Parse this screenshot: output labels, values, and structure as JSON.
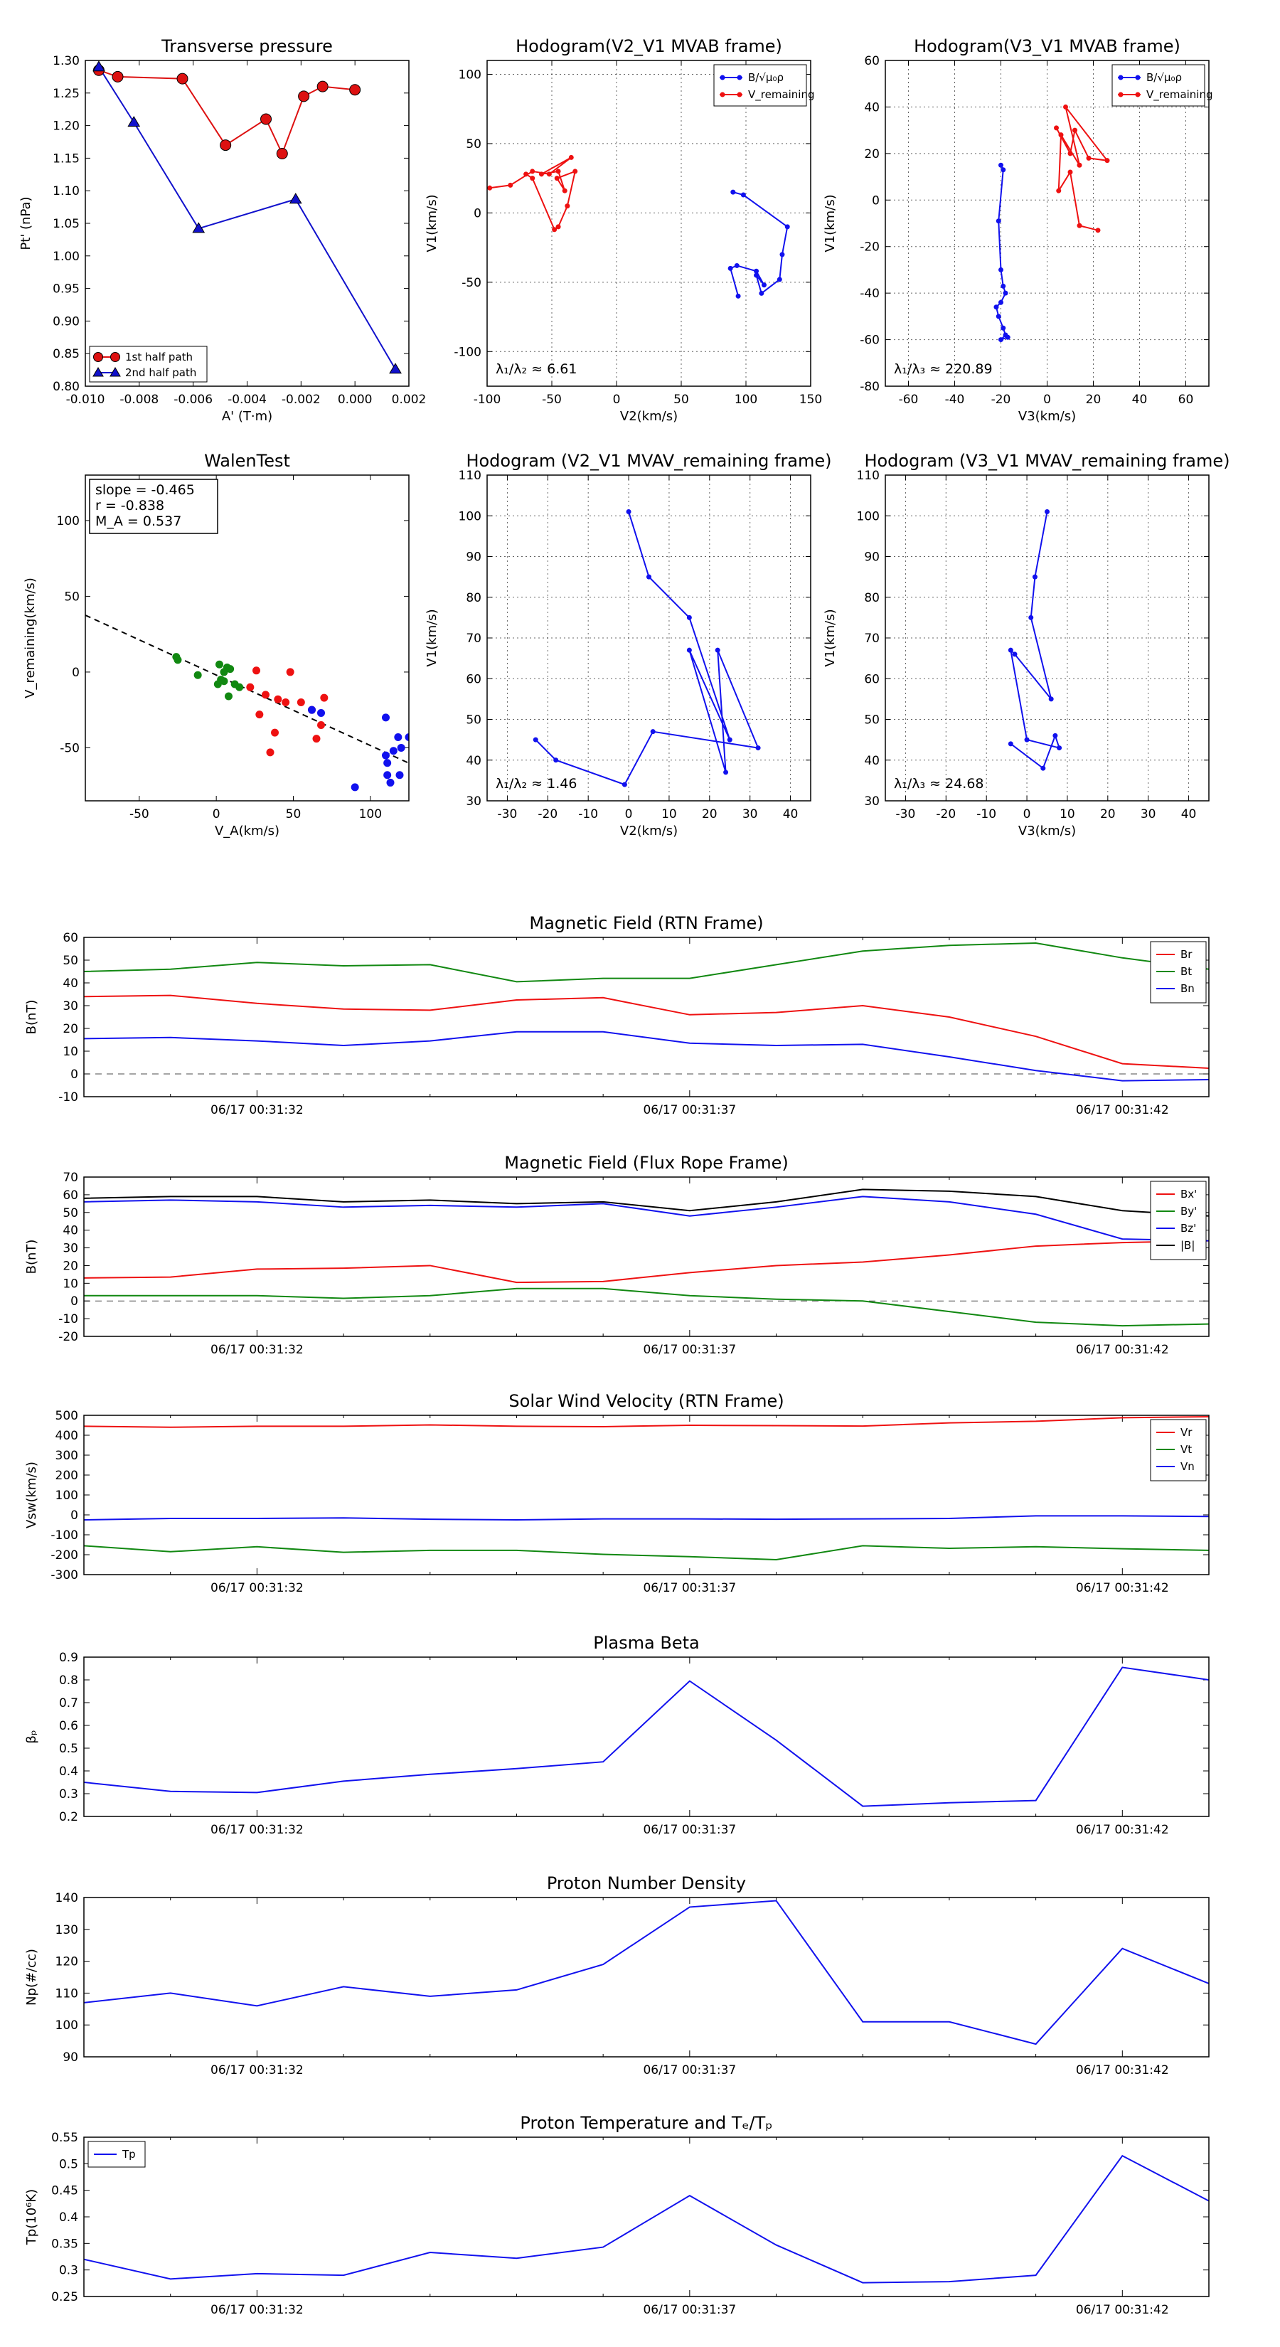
{
  "chart_data": [
    {
      "id": "pt",
      "type": "scatter",
      "title": "Transverse pressure",
      "xlabel": "A' (T·m)",
      "ylabel": "Pt' (nPa)",
      "xlim": [
        -0.01,
        0.002
      ],
      "ylim": [
        0.8,
        1.3
      ],
      "xticks": [
        -0.01,
        -0.008,
        -0.006,
        -0.004,
        -0.002,
        0.0,
        0.002
      ],
      "xtick_labels": [
        "-0.010",
        "-0.008",
        "-0.006",
        "-0.004",
        "-0.002",
        "0.000",
        "0.002"
      ],
      "yticks": [
        0.8,
        0.85,
        0.9,
        0.95,
        1.0,
        1.05,
        1.1,
        1.15,
        1.2,
        1.25,
        1.3
      ],
      "ytick_labels": [
        "0.80",
        "0.85",
        "0.90",
        "0.95",
        "1.00",
        "1.05",
        "1.10",
        "1.15",
        "1.20",
        "1.25",
        "1.30"
      ],
      "grid": false,
      "legend": "lower-left",
      "series": [
        {
          "name": "1st half path",
          "color": "#dd1111",
          "marker": "circle",
          "x": [
            -0.0095,
            -0.0088,
            -0.0064,
            -0.0048,
            -0.0033,
            -0.0027,
            -0.0019,
            -0.0012,
            0.0
          ],
          "y": [
            1.285,
            1.275,
            1.272,
            1.17,
            1.21,
            1.157,
            1.245,
            1.26,
            1.255
          ]
        },
        {
          "name": "2nd half path",
          "color": "#1111cc",
          "marker": "triangle",
          "x": [
            -0.0095,
            -0.0082,
            -0.0058,
            -0.0022,
            0.0015
          ],
          "y": [
            1.29,
            1.205,
            1.042,
            1.087,
            0.826
          ]
        }
      ]
    },
    {
      "id": "hodo1",
      "type": "line",
      "title": "Hodogram(V2_V1 MVAB frame)",
      "xlabel": "V2(km/s)",
      "ylabel": "V1(km/s)",
      "xlim": [
        -100,
        150
      ],
      "ylim": [
        -125,
        110
      ],
      "xticks": [
        -100,
        -50,
        0,
        50,
        100,
        150
      ],
      "yticks": [
        -100,
        -50,
        0,
        50,
        100
      ],
      "grid": true,
      "legend": "top-right",
      "annotation": "λ₁/λ₂ ≈ 6.61",
      "series": [
        {
          "name": "B/√μ₀ρ",
          "color": "#1111ee",
          "x": [
            90,
            98,
            132,
            128,
            126,
            112,
            108,
            114,
            108,
            93,
            88,
            94
          ],
          "y": [
            15,
            13,
            -10,
            -30,
            -48,
            -58,
            -45,
            -52,
            -42,
            -38,
            -40,
            -60
          ]
        },
        {
          "name": "V_remaining",
          "color": "#ee1111",
          "x": [
            -98,
            -82,
            -65,
            -52,
            -35,
            -58,
            -45,
            -40,
            -46,
            -32,
            -38,
            -45,
            -48,
            -65,
            -70
          ],
          "y": [
            18,
            20,
            30,
            28,
            40,
            28,
            30,
            16,
            25,
            30,
            5,
            -10,
            -12,
            25,
            28
          ]
        }
      ]
    },
    {
      "id": "hodo2",
      "type": "line",
      "title": "Hodogram(V3_V1 MVAB frame)",
      "xlabel": "V3(km/s)",
      "ylabel": "V1(km/s)",
      "xlim": [
        -70,
        70
      ],
      "ylim": [
        -80,
        60
      ],
      "xticks": [
        -60,
        -40,
        -20,
        0,
        20,
        40,
        60
      ],
      "yticks": [
        -80,
        -60,
        -40,
        -20,
        0,
        20,
        40,
        60
      ],
      "grid": true,
      "legend": "top-right",
      "annotation": "λ₁/λ₃ ≈ 220.89",
      "series": [
        {
          "name": "B/√μ₀ρ",
          "color": "#1111ee",
          "x": [
            -20,
            -19,
            -21,
            -20,
            -19,
            -18,
            -20,
            -22,
            -21,
            -19,
            -18,
            -20,
            -17
          ],
          "y": [
            15,
            13,
            -9,
            -30,
            -37,
            -40,
            -44,
            -46,
            -50,
            -55,
            -58,
            -60,
            -59
          ]
        },
        {
          "name": "V_remaining",
          "color": "#ee1111",
          "x": [
            4,
            10,
            12,
            18,
            26,
            8,
            14,
            6,
            5,
            10,
            14,
            22
          ],
          "y": [
            31,
            20,
            30,
            18,
            17,
            40,
            15,
            28,
            4,
            12,
            -11,
            -13
          ]
        }
      ]
    },
    {
      "id": "walen",
      "type": "scatter",
      "title": "WalenTest",
      "xlabel": "V_A(km/s)",
      "ylabel": "V_remaining(km/s)",
      "xlim": [
        -85,
        125
      ],
      "ylim": [
        -85,
        130
      ],
      "xticks": [
        -50,
        0,
        50,
        100
      ],
      "yticks": [
        -50,
        0,
        50,
        100
      ],
      "grid": false,
      "annotation_lines": [
        "slope = -0.465",
        "r = -0.838",
        "M_A = 0.537"
      ],
      "fit": {
        "slope": -0.465,
        "intercept": -2,
        "color": "#000000"
      },
      "series": [
        {
          "name": "green",
          "color": "#118811",
          "x": [
            -26,
            -25,
            -12,
            2,
            5,
            7,
            1,
            3,
            8,
            12,
            15,
            5,
            9
          ],
          "y": [
            10,
            8,
            -2,
            5,
            -6,
            3,
            -8,
            -5,
            -16,
            -8,
            -10,
            0,
            2
          ]
        },
        {
          "name": "red",
          "color": "#ee1111",
          "x": [
            22,
            26,
            28,
            32,
            35,
            38,
            40,
            45,
            48,
            55,
            62,
            65,
            68,
            70
          ],
          "y": [
            -10,
            1,
            -28,
            -15,
            -53,
            -40,
            -18,
            -20,
            0,
            -20,
            -25,
            -44,
            -35,
            -17
          ]
        },
        {
          "name": "blue",
          "color": "#1111ee",
          "x": [
            62,
            68,
            90,
            95,
            110,
            110,
            111,
            111,
            113,
            115,
            118,
            119,
            120,
            125
          ],
          "y": [
            -25,
            -27,
            -76,
            -88,
            -30,
            -55,
            -60,
            -68,
            -73,
            -52,
            -43,
            -68,
            -50,
            -43
          ]
        }
      ]
    },
    {
      "id": "hodo3",
      "type": "line",
      "title": "Hodogram (V2_V1 MVAV_remaining frame)",
      "xlabel": "V2(km/s)",
      "ylabel": "V1(km/s)",
      "xlim": [
        -35,
        45
      ],
      "ylim": [
        30,
        110
      ],
      "xticks": [
        -30,
        -20,
        -10,
        0,
        10,
        20,
        30,
        40
      ],
      "yticks": [
        30,
        40,
        50,
        60,
        70,
        80,
        90,
        100,
        110
      ],
      "grid": true,
      "annotation": "λ₁/λ₂ ≈ 1.46",
      "series": [
        {
          "name": "V",
          "color": "#1111ee",
          "x": [
            0,
            5,
            15,
            25,
            15,
            24,
            22,
            32,
            6,
            -1,
            -18,
            -23
          ],
          "y": [
            101,
            85,
            75,
            45,
            67,
            37,
            67,
            43,
            47,
            34,
            40,
            45
          ]
        }
      ]
    },
    {
      "id": "hodo4",
      "type": "line",
      "title": "Hodogram (V3_V1 MVAV_remaining frame)",
      "xlabel": "V3(km/s)",
      "ylabel": "V1(km/s)",
      "xlim": [
        -35,
        45
      ],
      "ylim": [
        30,
        110
      ],
      "xticks": [
        -30,
        -20,
        -10,
        0,
        10,
        20,
        30,
        40
      ],
      "yticks": [
        30,
        40,
        50,
        60,
        70,
        80,
        90,
        100,
        110
      ],
      "grid": true,
      "annotation": "λ₁/λ₃ ≈ 24.68",
      "series": [
        {
          "name": "V",
          "color": "#1111ee",
          "x": [
            5,
            2,
            1,
            6,
            -3,
            -4,
            0,
            8,
            7,
            4,
            -4
          ],
          "y": [
            101,
            85,
            75,
            55,
            66,
            67,
            45,
            43,
            46,
            38,
            44
          ]
        }
      ]
    },
    {
      "id": "bfield",
      "type": "line",
      "title": "Magnetic Field (RTN Frame)",
      "xlabel": "",
      "ylabel": "B(nT)",
      "ylim": [
        -10,
        60
      ],
      "yticks": [
        -10,
        0,
        10,
        20,
        30,
        40,
        50,
        60
      ],
      "xtick_labels": [
        "06/17 00:31:32",
        "06/17 00:31:37",
        "06/17 00:31:42"
      ],
      "zero_line": true,
      "legend": "top-right",
      "series": [
        {
          "name": "Br",
          "color": "#ee1111",
          "values": [
            34,
            34.5,
            31,
            28.5,
            28,
            32.5,
            33.5,
            26,
            27,
            30,
            25,
            16.5,
            4.5,
            2.5
          ]
        },
        {
          "name": "Bt",
          "color": "#118811",
          "values": [
            45,
            46,
            49,
            47.5,
            48,
            40.5,
            42,
            42,
            48,
            54,
            56.5,
            57.5,
            51,
            46
          ]
        },
        {
          "name": "Bn",
          "color": "#1111ee",
          "values": [
            15.5,
            16,
            14.5,
            12.5,
            14.5,
            18.5,
            18.5,
            13.5,
            12.5,
            13,
            7.5,
            1.5,
            -3,
            -2.5
          ]
        }
      ]
    },
    {
      "id": "bfr",
      "type": "line",
      "title": "Magnetic Field (Flux Rope Frame)",
      "xlabel": "",
      "ylabel": "B(nT)",
      "ylim": [
        -20,
        70
      ],
      "yticks": [
        -20,
        -10,
        0,
        10,
        20,
        30,
        40,
        50,
        60,
        70
      ],
      "xtick_labels": [
        "06/17 00:31:32",
        "06/17 00:31:37",
        "06/17 00:31:42"
      ],
      "zero_line": true,
      "legend": "top-right",
      "series": [
        {
          "name": "Bx'",
          "color": "#ee1111",
          "values": [
            13,
            13.5,
            18,
            18.5,
            20,
            10.5,
            11,
            16,
            20,
            22,
            26,
            31,
            33,
            34
          ]
        },
        {
          "name": "By'",
          "color": "#118811",
          "values": [
            3,
            3,
            3,
            1.5,
            3,
            7,
            7,
            3,
            1,
            0,
            -6,
            -12,
            -14,
            -13
          ]
        },
        {
          "name": "Bz'",
          "color": "#1111ee",
          "values": [
            56,
            57,
            56,
            53,
            54,
            53,
            55,
            48,
            53,
            59,
            56,
            49,
            35,
            34
          ]
        },
        {
          "name": "|B|",
          "color": "#000000",
          "values": [
            58,
            59,
            59,
            56,
            57,
            55,
            56,
            51,
            56,
            63,
            62,
            59,
            51,
            48
          ]
        }
      ]
    },
    {
      "id": "vsw",
      "type": "line",
      "title": "Solar Wind Velocity (RTN Frame)",
      "xlabel": "",
      "ylabel": "Vsw(km/s)",
      "ylim": [
        -300,
        500
      ],
      "yticks": [
        -300,
        -200,
        -100,
        0,
        100,
        200,
        300,
        400,
        500
      ],
      "xtick_labels": [
        "06/17 00:31:32",
        "06/17 00:31:37",
        "06/17 00:31:42"
      ],
      "legend": "top-right",
      "series": [
        {
          "name": "Vr",
          "color": "#ee1111",
          "values": [
            445,
            440,
            445,
            445,
            452,
            445,
            443,
            450,
            448,
            446,
            462,
            470,
            488,
            493
          ]
        },
        {
          "name": "Vt",
          "color": "#118811",
          "values": [
            -155,
            -185,
            -160,
            -188,
            -178,
            -178,
            -198,
            -210,
            -225,
            -155,
            -168,
            -160,
            -170,
            -178
          ]
        },
        {
          "name": "Vn",
          "color": "#1111ee",
          "values": [
            -25,
            -18,
            -18,
            -15,
            -22,
            -25,
            -20,
            -20,
            -22,
            -20,
            -18,
            -5,
            -5,
            -8
          ]
        }
      ]
    },
    {
      "id": "beta",
      "type": "line",
      "title": "Plasma Beta",
      "xlabel": "",
      "ylabel": "βₚ",
      "ylim": [
        0.2,
        0.9
      ],
      "yticks": [
        0.2,
        0.3,
        0.4,
        0.5,
        0.6,
        0.7,
        0.8,
        0.9
      ],
      "xtick_labels": [
        "06/17 00:31:32",
        "06/17 00:31:37",
        "06/17 00:31:42"
      ],
      "series": [
        {
          "name": "beta",
          "color": "#1111ee",
          "values": [
            0.35,
            0.31,
            0.305,
            0.355,
            0.385,
            0.41,
            0.44,
            0.795,
            0.535,
            0.245,
            0.26,
            0.27,
            0.855,
            0.8
          ]
        }
      ]
    },
    {
      "id": "np",
      "type": "line",
      "title": "Proton Number Density",
      "xlabel": "",
      "ylabel": "Np(#/cc)",
      "ylim": [
        90,
        140
      ],
      "yticks": [
        90,
        100,
        110,
        120,
        130,
        140
      ],
      "xtick_labels": [
        "06/17 00:31:32",
        "06/17 00:31:37",
        "06/17 00:31:42"
      ],
      "series": [
        {
          "name": "Np",
          "color": "#1111ee",
          "values": [
            107,
            110,
            106,
            112,
            109,
            111,
            119,
            137,
            139,
            101,
            101,
            94,
            124,
            113
          ]
        }
      ]
    },
    {
      "id": "tp",
      "type": "line",
      "title": "Proton Temperature and Tₑ/Tₚ",
      "xlabel": "",
      "ylabel": "Tp(10⁶K)",
      "ylim": [
        0.25,
        0.55
      ],
      "yticks": [
        0.25,
        0.3,
        0.35,
        0.4,
        0.45,
        0.5,
        0.55
      ],
      "xtick_labels": [
        "06/17 00:31:32",
        "06/17 00:31:37",
        "06/17 00:31:42"
      ],
      "legend": "top-left",
      "series": [
        {
          "name": "Tp",
          "color": "#1111ee",
          "values": [
            0.32,
            0.283,
            0.293,
            0.29,
            0.333,
            0.322,
            0.343,
            0.44,
            0.347,
            0.276,
            0.278,
            0.29,
            0.515,
            0.43
          ]
        }
      ]
    }
  ]
}
